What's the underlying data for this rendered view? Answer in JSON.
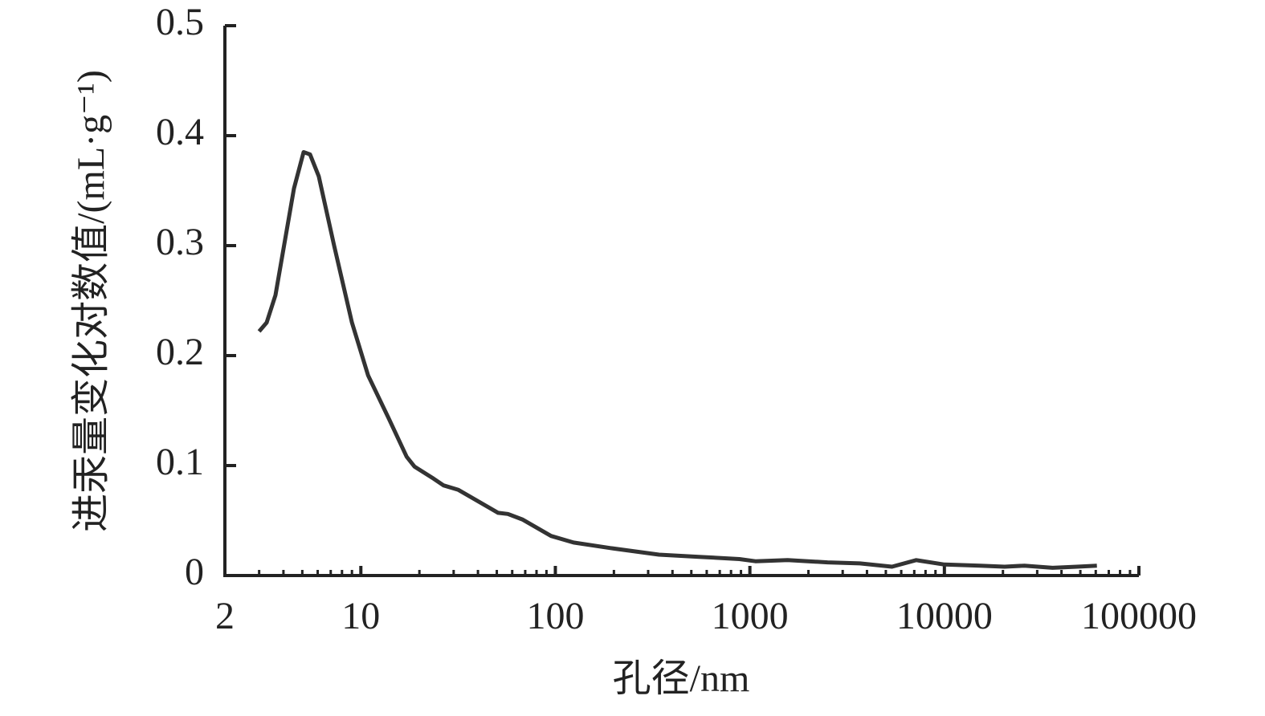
{
  "chart_data": {
    "type": "line",
    "xlabel": "孔径/nm",
    "ylabel": "进汞量变化对数值/(mL·g⁻¹)",
    "xscale": "log",
    "xlim": [
      2,
      100000
    ],
    "xticks": [
      2,
      10,
      100,
      1000,
      10000,
      100000
    ],
    "xminorticks": [
      3,
      4,
      5,
      6,
      7,
      8,
      9,
      20,
      30,
      40,
      50,
      60,
      70,
      80,
      90,
      200,
      300,
      400,
      500,
      600,
      700,
      800,
      900,
      2000,
      3000,
      4000,
      5000,
      6000,
      7000,
      8000,
      9000,
      20000,
      30000,
      40000,
      50000,
      60000,
      70000,
      80000,
      90000
    ],
    "ylim": [
      0,
      0.5
    ],
    "yticks": [
      0,
      0.1,
      0.2,
      0.3,
      0.4,
      0.5
    ],
    "grid": false,
    "series": [
      {
        "color": "#333333",
        "x": [
          3.0,
          3.28,
          3.64,
          4.53,
          5.08,
          5.48,
          6.08,
          7.29,
          9.0,
          10.9,
          13.9,
          17.2,
          18.9,
          23.7,
          26.6,
          31.6,
          50.8,
          57,
          67.6,
          95,
          124,
          192,
          341,
          548,
          883,
          1067,
          1563,
          2510,
          3680,
          5380,
          7160,
          10000,
          15300,
          20400,
          25800,
          36000,
          48000,
          60800
        ],
        "values": [
          0.222,
          0.23,
          0.255,
          0.352,
          0.385,
          0.383,
          0.363,
          0.3,
          0.23,
          0.182,
          0.143,
          0.108,
          0.099,
          0.088,
          0.082,
          0.078,
          0.057,
          0.056,
          0.051,
          0.036,
          0.03,
          0.025,
          0.019,
          0.017,
          0.015,
          0.013,
          0.014,
          0.012,
          0.011,
          0.008,
          0.014,
          0.01,
          0.009,
          0.008,
          0.009,
          0.007,
          0.008,
          0.009
        ]
      }
    ]
  }
}
